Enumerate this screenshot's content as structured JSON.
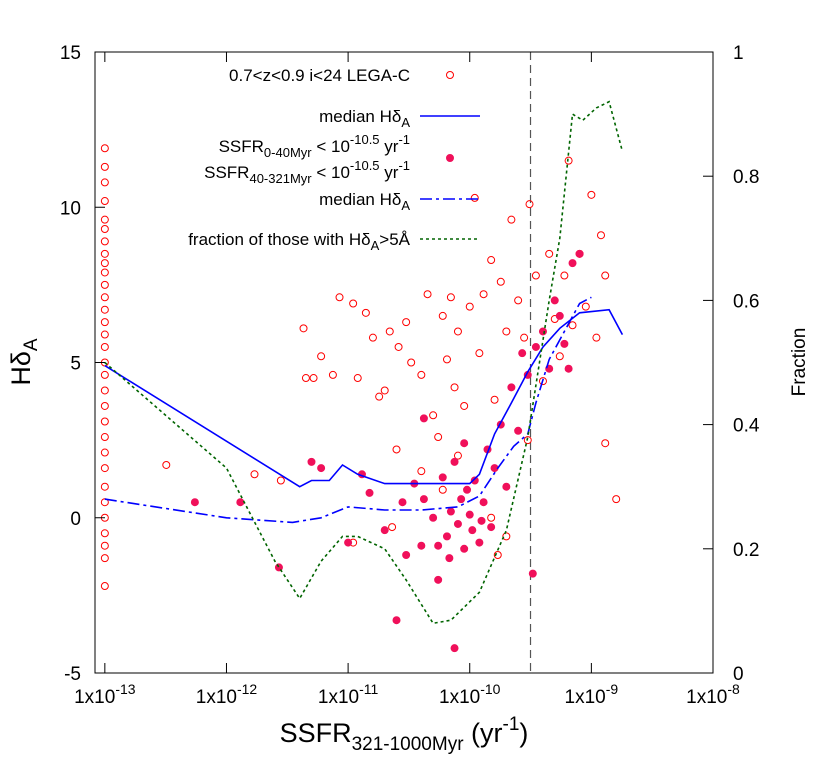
{
  "chart_data": {
    "type": "scatter",
    "xscale": "log",
    "xlim": [
      8.3e-14,
      1e-08
    ],
    "ylim": [
      -5,
      15
    ],
    "y2lim": [
      0,
      1
    ],
    "xticks": [
      {
        "value": 1e-13,
        "label": "1x10",
        "exponent": "-13"
      },
      {
        "value": 1e-12,
        "label": "1x10",
        "exponent": "-12"
      },
      {
        "value": 1e-11,
        "label": "1x10",
        "exponent": "-11"
      },
      {
        "value": 1e-10,
        "label": "1x10",
        "exponent": "-10"
      },
      {
        "value": 1e-09,
        "label": "1x10",
        "exponent": "-9"
      },
      {
        "value": 1e-08,
        "label": "1x10",
        "exponent": "-8"
      }
    ],
    "yticks": [
      -5,
      0,
      5,
      10,
      15
    ],
    "y2ticks": [
      0,
      0.2,
      0.4,
      0.6,
      0.8,
      1
    ],
    "x_label": [
      "SSFR",
      "321-1000Myr",
      " (yr",
      "-1",
      ")"
    ],
    "y_label": [
      "Hδ",
      "A"
    ],
    "y2_label": "Fraction",
    "vline": 3.16e-10,
    "vline_color": "#555555",
    "series": [
      {
        "name": "0.7<z<0.9 i<24 LEGA-C",
        "color": "#ff0000",
        "marker": "open",
        "x": [
          1e-13,
          1e-13,
          1e-13,
          1e-13,
          1e-13,
          1e-13,
          1e-13,
          1e-13,
          1e-13,
          1e-13,
          1e-13,
          1e-13,
          1e-13,
          1e-13,
          1e-13,
          1e-13,
          1e-13,
          1e-13,
          1e-13,
          1e-13,
          1e-13,
          1e-13,
          1e-13,
          1e-13,
          1e-13,
          1e-13,
          1e-13,
          1e-13,
          1e-13,
          1e-13,
          1e-13,
          3.2e-13,
          1.7e-12,
          2.8e-12,
          4.5e-12,
          4.3e-12,
          5.2e-12,
          6e-12,
          7.5e-12,
          8.5e-12,
          1.1e-11,
          1.2e-11,
          1.4e-11,
          1.6e-11,
          1.8e-11,
          2e-11,
          2.2e-11,
          2.6e-11,
          3e-11,
          3.3e-11,
          4e-11,
          4.5e-11,
          5e-11,
          5.5e-11,
          6e-11,
          6.5e-11,
          7e-11,
          7.5e-11,
          8e-11,
          9e-11,
          1e-10,
          1.1e-10,
          1.2e-10,
          1.3e-10,
          1.5e-10,
          1.6e-10,
          1.8e-10,
          2e-10,
          2.2e-10,
          2.5e-10,
          2.8e-10,
          3.1e-10,
          3.5e-10,
          4e-10,
          4.5e-10,
          5e-10,
          5.5e-10,
          6e-10,
          6.5e-10,
          7e-10,
          8e-10,
          9e-10,
          1e-09,
          1.2e-09,
          1.3e-09,
          1.3e-09,
          1.6e-09,
          1.1e-09,
          2.5e-11,
          4e-11,
          6e-11,
          8e-11,
          1.5e-10,
          2e-10,
          1.7e-10,
          3e-10,
          1.1e-11,
          2.3e-11
        ],
        "values": [
          11.9,
          11.3,
          10.8,
          10.2,
          9.6,
          9.3,
          8.9,
          8.5,
          8.2,
          7.9,
          7.5,
          7.1,
          6.7,
          6.3,
          5.9,
          5.5,
          5.0,
          4.6,
          4.1,
          3.6,
          3.1,
          2.6,
          2.1,
          1.6,
          1.0,
          0.5,
          0.0,
          -0.5,
          -0.9,
          -1.3,
          -2.2,
          1.7,
          1.4,
          1.2,
          4.5,
          6.1,
          4.5,
          5.2,
          4.6,
          7.1,
          6.9,
          4.5,
          6.6,
          5.8,
          3.9,
          4.1,
          6.0,
          5.5,
          6.3,
          5.0,
          4.6,
          7.2,
          3.3,
          2.6,
          6.5,
          5.1,
          7.1,
          4.2,
          6.0,
          3.6,
          6.8,
          10.3,
          5.3,
          7.2,
          8.3,
          3.8,
          7.6,
          6.0,
          9.6,
          7.0,
          5.8,
          10.1,
          7.8,
          4.4,
          8.5,
          6.4,
          5.2,
          7.8,
          11.5,
          6.2,
          8.5,
          6.8,
          10.4,
          9.1,
          7.8,
          2.4,
          0.6,
          5.8,
          2.2,
          1.5,
          0.9,
          2.0,
          0.0,
          -0.6,
          -1.2,
          2.5,
          -0.8,
          -0.3
        ]
      },
      {
        "name": [
          [
            "SSFR",
            "0-40Myr",
            " < 10",
            "-10.5",
            " yr",
            "-1"
          ],
          [
            "SSFR",
            "40-321Myr",
            " < 10",
            "-10.5",
            " yr",
            "-1"
          ]
        ],
        "color": "#f0105a",
        "marker": "filled",
        "x": [
          5.5e-13,
          1.3e-12,
          2.7e-12,
          5e-12,
          6e-12,
          1e-11,
          1.3e-11,
          1.5e-11,
          2e-11,
          2.5e-11,
          2.8e-11,
          3e-11,
          3.5e-11,
          4e-11,
          4.2e-11,
          5e-11,
          5.5e-11,
          6e-11,
          6.5e-11,
          7e-11,
          7.5e-11,
          7.5e-11,
          8e-11,
          8.5e-11,
          9e-11,
          9e-11,
          1e-10,
          1.05e-10,
          1.1e-10,
          1.2e-10,
          1.3e-10,
          1.4e-10,
          1.5e-10,
          1.6e-10,
          1.8e-10,
          2e-10,
          2.2e-10,
          2.5e-10,
          2.7e-10,
          3e-10,
          3.3e-10,
          3.5e-10,
          4e-10,
          4.5e-10,
          5e-10,
          5.5e-10,
          6e-10,
          7e-10,
          8e-10,
          6.5e-10,
          4.2e-11,
          5.5e-11,
          6.8e-11,
          9.5e-11,
          1.25e-10
        ],
        "values": [
          0.5,
          0.5,
          -1.6,
          1.8,
          1.6,
          -0.8,
          1.4,
          0.8,
          -0.4,
          -3.3,
          0.5,
          -1.2,
          1.1,
          -0.9,
          3.2,
          0.0,
          -2.0,
          1.3,
          -0.6,
          0.2,
          -4.2,
          1.8,
          -0.2,
          0.6,
          -1.0,
          2.4,
          0.1,
          -0.4,
          1.2,
          -0.8,
          0.5,
          2.2,
          -0.3,
          1.6,
          3.0,
          1.0,
          4.2,
          2.8,
          5.3,
          4.6,
          -1.8,
          5.5,
          6.0,
          4.8,
          7.0,
          6.5,
          5.6,
          8.2,
          8.5,
          4.8,
          0.6,
          -0.9,
          -1.3,
          0.9,
          -0.1
        ]
      },
      {
        "name": [
          "median Hδ",
          "A"
        ],
        "color": "#0000ff",
        "style": "solid",
        "x": [
          1e-13,
          4e-12,
          5e-12,
          7e-12,
          9e-12,
          1.2e-11,
          2e-11,
          5e-11,
          1e-10,
          1.2e-10,
          1.6e-10,
          2.2e-10,
          3e-10,
          4e-10,
          5.5e-10,
          8e-10,
          1.4e-09,
          1.8e-09
        ],
        "values": [
          4.9,
          1.0,
          1.2,
          1.2,
          1.7,
          1.4,
          1.1,
          1.1,
          1.1,
          1.4,
          2.7,
          3.7,
          4.7,
          5.5,
          6.1,
          6.6,
          6.7,
          5.9
        ]
      },
      {
        "name": [
          "median Hδ",
          "A"
        ],
        "color": "#0000ff",
        "style": "dashdot",
        "x": [
          1e-13,
          1e-12,
          3.5e-12,
          6e-12,
          1e-11,
          2e-11,
          4e-11,
          8e-11,
          1.2e-10,
          1.7e-10,
          2.3e-10,
          3e-10,
          3.5e-10,
          4.5e-10,
          6e-10,
          8e-10,
          1e-09
        ],
        "values": [
          0.6,
          0.0,
          -0.15,
          0.0,
          0.35,
          0.25,
          0.25,
          0.35,
          0.7,
          1.6,
          2.3,
          2.7,
          3.7,
          5.1,
          6.0,
          6.9,
          7.1
        ]
      },
      {
        "name": [
          "fraction of those with Hδ",
          "A",
          ">5Å"
        ],
        "color": "#006400",
        "style": "dotted",
        "axis": "y2",
        "x": [
          1e-13,
          1e-12,
          2.5e-12,
          4e-12,
          6e-12,
          9e-12,
          1.2e-11,
          2e-11,
          3e-11,
          5e-11,
          7e-11,
          1.2e-10,
          2e-10,
          3e-10,
          4.5e-10,
          5.5e-10,
          7e-10,
          8.5e-10,
          1.1e-09,
          1.4e-09,
          1.8e-09
        ],
        "values": [
          0.5,
          0.33,
          0.18,
          0.12,
          0.18,
          0.22,
          0.22,
          0.2,
          0.15,
          0.08,
          0.085,
          0.13,
          0.23,
          0.38,
          0.6,
          0.7,
          0.9,
          0.89,
          0.91,
          0.92,
          0.84
        ]
      }
    ]
  }
}
